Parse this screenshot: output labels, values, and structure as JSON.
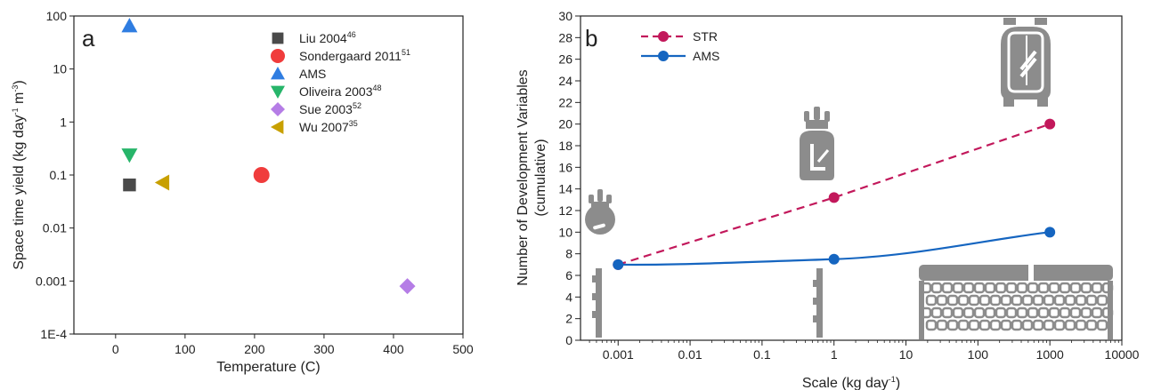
{
  "chart_data": [
    {
      "panel_label": "a",
      "type": "scatter",
      "xlabel": "Temperature (C)",
      "ylabel_main": "Space time yield (kg day",
      "ylabel_sup1": "-1",
      "ylabel_mid": " m",
      "ylabel_sup2": "-3",
      "ylabel_end": ")",
      "xlim": [
        -60,
        500
      ],
      "ylim": [
        0.0001,
        100
      ],
      "yscale": "log",
      "xticks": [
        0,
        100,
        200,
        300,
        400,
        500
      ],
      "xtick_labels": [
        "0",
        "100",
        "200",
        "300",
        "400",
        "500"
      ],
      "yticks": [
        0.0001,
        0.001,
        0.01,
        0.1,
        1,
        10,
        100
      ],
      "ytick_labels": [
        "1E-4",
        "0.001",
        "0.01",
        "0.1",
        "1",
        "10",
        "100"
      ],
      "legend_position": "top-right",
      "series": [
        {
          "name": "Liu 2004",
          "ref": "46",
          "marker": "square",
          "color": "#4a4a4a",
          "x": [
            20
          ],
          "y": [
            0.065
          ]
        },
        {
          "name": "Sondergaard 2011",
          "ref": "51",
          "marker": "circle",
          "color": "#f03c3c",
          "x": [
            210
          ],
          "y": [
            0.1
          ]
        },
        {
          "name": "AMS",
          "ref": "",
          "marker": "triangle-up",
          "color": "#2f7de1",
          "x": [
            20
          ],
          "y": [
            65
          ]
        },
        {
          "name": "Oliveira 2003",
          "ref": "48",
          "marker": "triangle-down",
          "color": "#27b56a",
          "x": [
            20
          ],
          "y": [
            0.24
          ]
        },
        {
          "name": "Sue 2003",
          "ref": "52",
          "marker": "diamond",
          "color": "#b57de6",
          "x": [
            420
          ],
          "y": [
            0.0008
          ]
        },
        {
          "name": "Wu 2007",
          "ref": "35",
          "marker": "triangle-left",
          "color": "#c8a000",
          "x": [
            68
          ],
          "y": [
            0.072
          ]
        }
      ]
    },
    {
      "panel_label": "b",
      "type": "line",
      "xlabel_main": "Scale (kg day",
      "xlabel_sup": "-1",
      "xlabel_end": ")",
      "ylabel_line1": "Number of Development Variables",
      "ylabel_line2": "(cumulative)",
      "xscale": "log",
      "xlim": [
        0.0003,
        10000
      ],
      "ylim": [
        0,
        30
      ],
      "xticks": [
        0.001,
        0.01,
        0.1,
        1,
        10,
        100,
        1000,
        10000
      ],
      "xtick_labels": [
        "0.001",
        "0.01",
        "0.1",
        "1",
        "10",
        "100",
        "1000",
        "10000"
      ],
      "yticks": [
        0,
        2,
        4,
        6,
        8,
        10,
        12,
        14,
        16,
        18,
        20,
        22,
        24,
        26,
        28,
        30
      ],
      "legend_position": "top-left",
      "series": [
        {
          "name": "STR",
          "style": "dashed",
          "color": "#c2185b",
          "x": [
            0.001,
            1,
            1000
          ],
          "y": [
            7,
            13.2,
            20
          ]
        },
        {
          "name": "AMS",
          "style": "solid",
          "color": "#1565c0",
          "x": [
            0.001,
            1,
            1000
          ],
          "y": [
            7,
            7.5,
            10
          ]
        }
      ],
      "icons": [
        "flask-icon",
        "jacketed-vessel-icon",
        "stirred-tank-reactor-icon",
        "static-mixer-icon",
        "agitated-cell-reactor-icon"
      ],
      "icon_color": "#8c8c8c"
    }
  ]
}
